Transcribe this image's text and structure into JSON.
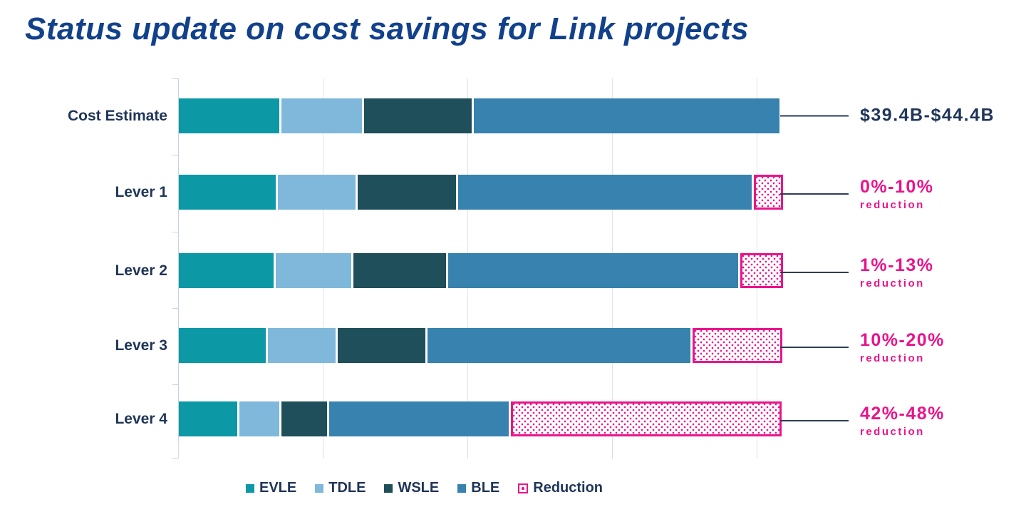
{
  "chart_data": {
    "type": "bar",
    "orientation": "horizontal",
    "stacked": true,
    "title": "Status update on cost savings for Link projects",
    "categories": [
      "Cost Estimate",
      "Lever 1",
      "Lever 2",
      "Lever 3",
      "Lever 4"
    ],
    "series": [
      {
        "name": "EVLE",
        "color": "#0d98a6",
        "values_pct": [
          16.7,
          16.0,
          15.7,
          14.4,
          9.7
        ]
      },
      {
        "name": "TDLE",
        "color": "#7fb8da",
        "values_pct": [
          13.3,
          12.9,
          12.5,
          11.2,
          6.6
        ]
      },
      {
        "name": "WSLE",
        "color": "#1e4f5a",
        "values_pct": [
          17.8,
          16.3,
          15.4,
          14.5,
          7.5
        ]
      },
      {
        "name": "BLE",
        "color": "#3782ae",
        "values_pct": [
          50.7,
          48.7,
          48.0,
          43.6,
          29.8
        ]
      },
      {
        "name": "Reduction",
        "color": "#e9148b",
        "pattern": "dots",
        "values_pct": [
          0,
          4.8,
          7.1,
          14.9,
          44.9
        ]
      }
    ],
    "annotations": [
      {
        "value": "$39.4B-$44.4B",
        "sub": ""
      },
      {
        "value": "0%-10%",
        "sub": "reduction"
      },
      {
        "value": "1%-13%",
        "sub": "reduction"
      },
      {
        "value": "10%-20%",
        "sub": "reduction"
      },
      {
        "value": "42%-48%",
        "sub": "reduction"
      }
    ],
    "legend_position": "bottom",
    "grid": true,
    "gridline_count": 5,
    "units": "share of total cost estimate (bar length), labels in $B and % reduction"
  },
  "colors": {
    "title": "#12418c",
    "text_navy": "#1f3558",
    "accent_pink": "#e9148b",
    "gridline": "#dde3f3"
  }
}
